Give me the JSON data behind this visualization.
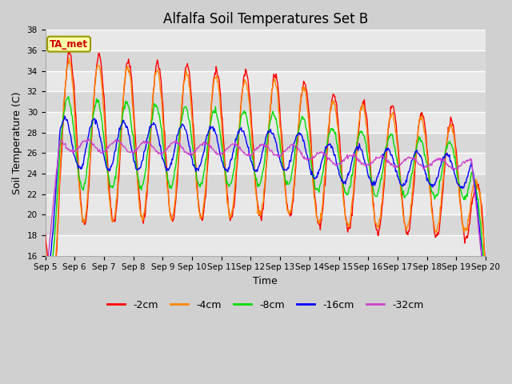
{
  "title": "Alfalfa Soil Temperatures Set B",
  "xlabel": "Time",
  "ylabel": "Soil Temperature (C)",
  "ylim": [
    16,
    38
  ],
  "series_labels": [
    "-2cm",
    "-4cm",
    "-8cm",
    "-16cm",
    "-32cm"
  ],
  "series_colors": [
    "#ff0000",
    "#ff8800",
    "#00dd00",
    "#0000ff",
    "#cc44cc"
  ],
  "annotation_text": "TA_met",
  "annotation_bg": "#ffffaa",
  "annotation_border": "#999900",
  "title_fontsize": 12,
  "axis_label_fontsize": 9,
  "tick_fontsize": 7.5,
  "legend_fontsize": 9
}
